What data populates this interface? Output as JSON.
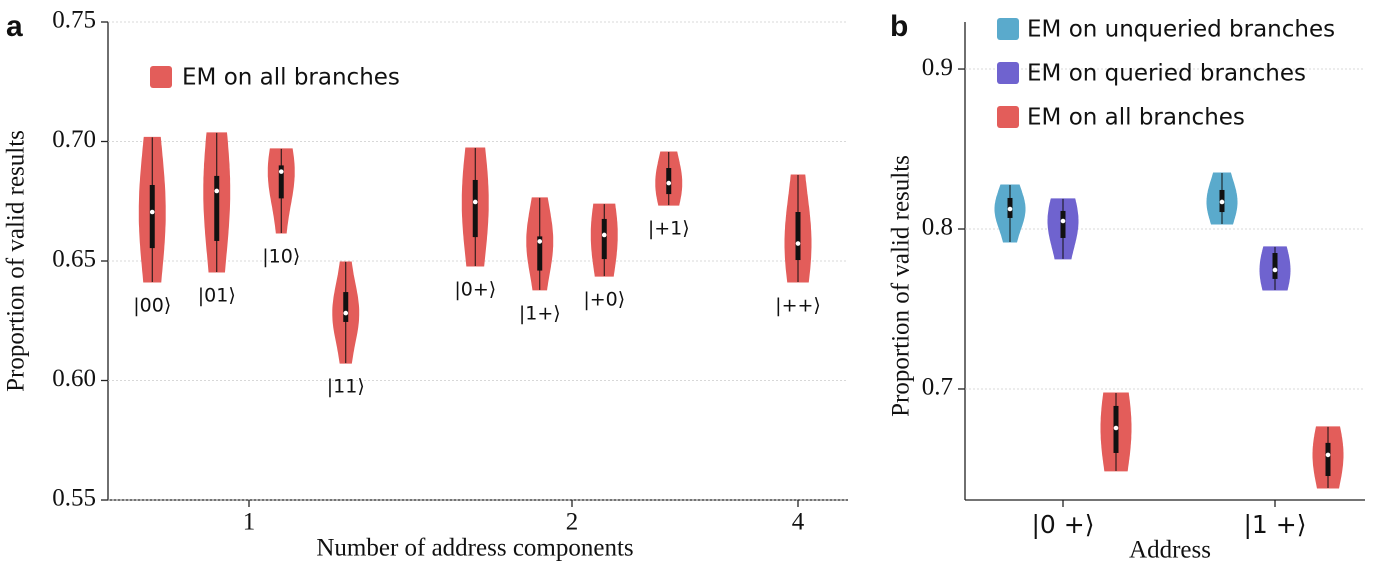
{
  "chart_data": [
    {
      "type": "violin",
      "panel_label": "a",
      "x_label": "Number of address components",
      "y_label": "Proportion of valid results",
      "ylim": [
        0.55,
        0.75
      ],
      "yticks": [
        0.55,
        {
          "value": 0.6,
          "label": "0.60"
        },
        0.65,
        {
          "value": 0.7,
          "label": "0.70"
        },
        0.75
      ],
      "grid": true,
      "series": [
        {
          "name": "EM on all branches",
          "color": "#e35d5a"
        }
      ],
      "groups": [
        {
          "category": "1",
          "violins": [
            {
              "label": "|00⟩",
              "min": 0.6412,
              "q1": 0.6554,
              "median": 0.6705,
              "q3": 0.6818,
              "max": 0.7017
            },
            {
              "label": "|01⟩",
              "min": 0.6454,
              "q1": 0.6584,
              "median": 0.6793,
              "q3": 0.6856,
              "max": 0.7036
            },
            {
              "label": "|10⟩",
              "min": 0.6617,
              "q1": 0.6762,
              "median": 0.6874,
              "q3": 0.69,
              "max": 0.6969
            },
            {
              "label": "|11⟩",
              "min": 0.6073,
              "q1": 0.6245,
              "median": 0.6282,
              "q3": 0.637,
              "max": 0.6496
            }
          ]
        },
        {
          "category": "2",
          "violins": [
            {
              "label": "|0+⟩",
              "min": 0.6479,
              "q1": 0.66,
              "median": 0.6747,
              "q3": 0.6839,
              "max": 0.6973
            },
            {
              "label": "|1+⟩",
              "min": 0.6379,
              "q1": 0.646,
              "median": 0.6582,
              "q3": 0.6603,
              "max": 0.6764
            },
            {
              "label": "|+0⟩",
              "min": 0.6437,
              "q1": 0.6508,
              "median": 0.6609,
              "q3": 0.6676,
              "max": 0.6738
            },
            {
              "label": "|+1⟩",
              "min": 0.6734,
              "q1": 0.678,
              "median": 0.6826,
              "q3": 0.6889,
              "max": 0.6956
            }
          ]
        },
        {
          "category": "4",
          "violins": [
            {
              "label": "|++⟩",
              "min": 0.6412,
              "q1": 0.6504,
              "median": 0.6573,
              "q3": 0.6705,
              "max": 0.686
            }
          ]
        }
      ]
    },
    {
      "type": "violin",
      "panel_label": "b",
      "x_label": "Address",
      "y_label": "Proportion of valid results",
      "ylim": [
        0.6306,
        0.9294
      ],
      "yticks": [
        0.7,
        0.8,
        0.9
      ],
      "grid": true,
      "categories": [
        "|0 +⟩",
        "|1 +⟩"
      ],
      "series": [
        {
          "name": "EM on unqueried branches",
          "color": "#5aaacc",
          "values": [
            {
              "min": 0.7919,
              "q1": 0.8069,
              "median": 0.8125,
              "q3": 0.8194,
              "max": 0.8275
            },
            {
              "min": 0.8031,
              "q1": 0.8106,
              "median": 0.8169,
              "q3": 0.8244,
              "max": 0.835
            }
          ]
        },
        {
          "name": "EM on queried branches",
          "color": "#6f63cf",
          "values": [
            {
              "min": 0.7813,
              "q1": 0.7944,
              "median": 0.805,
              "q3": 0.8113,
              "max": 0.8188
            },
            {
              "min": 0.7619,
              "q1": 0.7688,
              "median": 0.7744,
              "q3": 0.785,
              "max": 0.7888
            }
          ]
        },
        {
          "name": "EM on all branches",
          "color": "#e35d5a",
          "values": [
            {
              "min": 0.6488,
              "q1": 0.66,
              "median": 0.6756,
              "q3": 0.6894,
              "max": 0.6975
            },
            {
              "min": 0.6381,
              "q1": 0.6456,
              "median": 0.6588,
              "q3": 0.6663,
              "max": 0.6763
            }
          ]
        }
      ]
    }
  ]
}
